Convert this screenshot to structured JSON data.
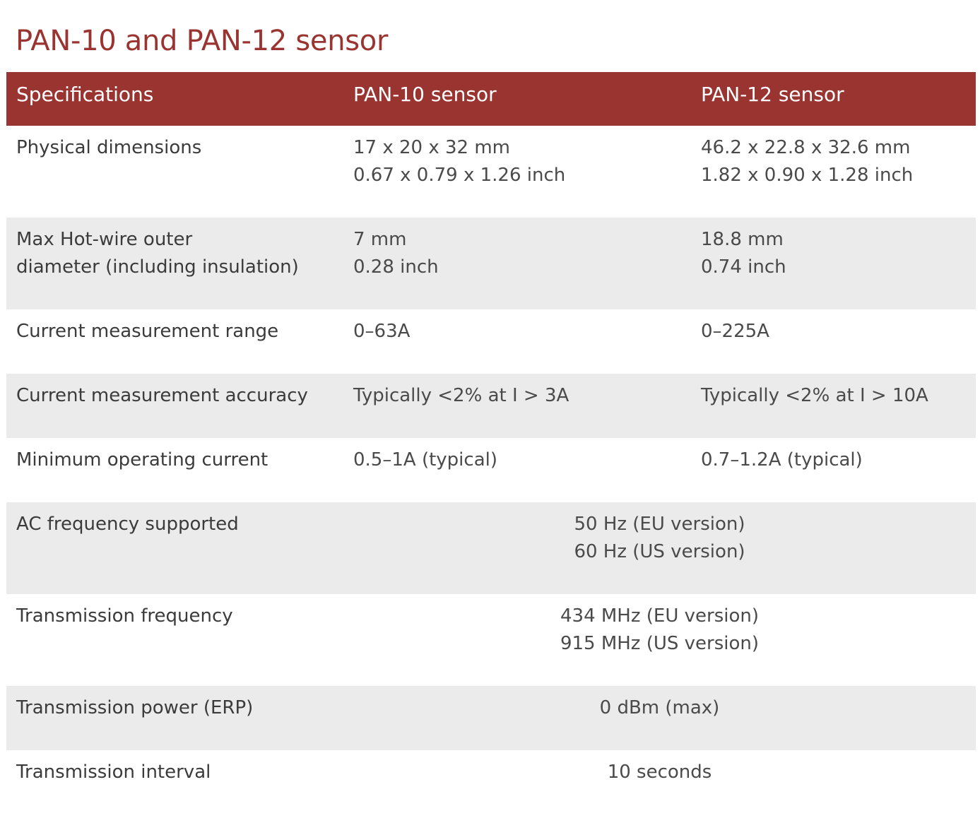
{
  "title": "PAN-10 and PAN-12 sensor",
  "header": {
    "spec": "Specifications",
    "col_a": "PAN-10 sensor",
    "col_b": "PAN-12 sensor"
  },
  "rows": [
    {
      "label_lines": [
        "Physical dimensions"
      ],
      "a_lines": [
        "17 x 20 x 32 mm",
        "0.67 x 0.79 x 1.26 inch"
      ],
      "b_lines": [
        "46.2 x 22.8 x 32.6 mm",
        "1.82 x 0.90 x 1.28 inch"
      ]
    },
    {
      "label_lines": [
        "Max Hot-wire outer",
        "diameter (including insulation)"
      ],
      "a_lines": [
        "7 mm",
        "0.28 inch"
      ],
      "b_lines": [
        "18.8 mm",
        "0.74 inch"
      ]
    },
    {
      "label_lines": [
        "Current measurement range"
      ],
      "a_lines": [
        "0–63A"
      ],
      "b_lines": [
        "0–225A"
      ]
    },
    {
      "label_lines": [
        "Current measurement accuracy"
      ],
      "a_lines": [
        "Typically <2% at I > 3A"
      ],
      "b_lines": [
        "Typically <2% at I > 10A"
      ]
    },
    {
      "label_lines": [
        "Minimum operating current"
      ],
      "a_lines": [
        "0.5–1A (typical)"
      ],
      "b_lines": [
        "0.7–1.2A (typical)"
      ]
    },
    {
      "label_lines": [
        "AC frequency supported"
      ],
      "span_lines": [
        "50 Hz (EU version)",
        "60 Hz (US version)"
      ]
    },
    {
      "label_lines": [
        "Transmission frequency"
      ],
      "span_lines": [
        "434 MHz (EU version)",
        "915 MHz (US version)"
      ]
    },
    {
      "label_lines": [
        "Transmission power (ERP)"
      ],
      "span_lines": [
        "0 dBm (max)"
      ]
    },
    {
      "label_lines": [
        "Transmission interval"
      ],
      "span_lines": [
        "10 seconds"
      ]
    }
  ],
  "colors": {
    "accent": "#9a3431",
    "shaded_row": "#ebebeb",
    "text": "#3b3b3b"
  }
}
